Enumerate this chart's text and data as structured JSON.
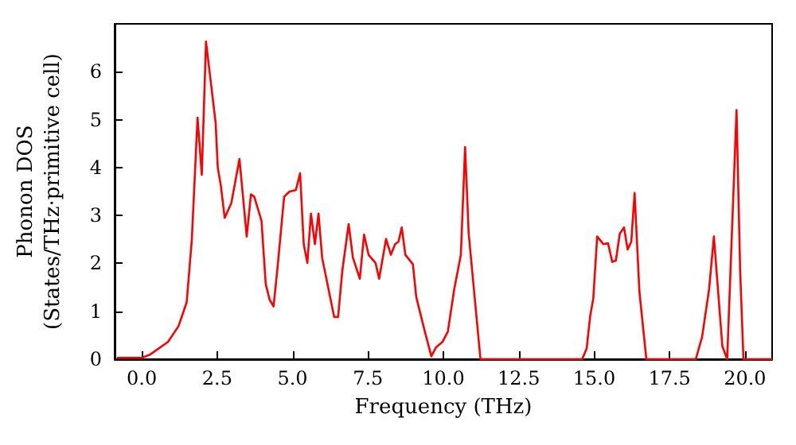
{
  "chart_data": {
    "type": "line",
    "xlabel": "Frequency (THz)",
    "ylabel": "Phonon DOS\n(States/THz·primitive cell)",
    "x": [
      -0.82,
      0,
      0.26,
      0.87,
      1.22,
      1.49,
      1.66,
      1.85,
      1.99,
      2.13,
      2.45,
      2.52,
      2.62,
      2.75,
      2.97,
      3.24,
      3.48,
      3.62,
      3.73,
      3.97,
      4.11,
      4.24,
      4.37,
      4.5,
      4.72,
      4.9,
      5.11,
      5.25,
      5.37,
      5.49,
      5.61,
      5.74,
      5.86,
      5.98,
      6.38,
      6.51,
      6.65,
      6.86,
      7.0,
      7.23,
      7.37,
      7.52,
      7.75,
      7.87,
      8.1,
      8.26,
      8.4,
      8.51,
      8.62,
      8.74,
      8.99,
      9.1,
      9.36,
      9.6,
      9.76,
      9.97,
      10.15,
      10.36,
      10.58,
      10.72,
      10.84,
      11.02,
      11.23,
      14.6,
      14.75,
      14.87,
      14.97,
      15.1,
      15.31,
      15.46,
      15.6,
      15.72,
      15.85,
      15.99,
      16.11,
      16.23,
      16.34,
      16.5,
      16.73,
      18.37,
      18.58,
      18.81,
      18.97,
      19.11,
      19.25,
      19.41,
      19.72,
      19.84,
      19.95,
      20.9
    ],
    "series": [
      {
        "color": "#ff0000",
        "values": [
          0.03,
          0.03,
          0.09,
          0.36,
          0.69,
          1.19,
          2.5,
          5.04,
          3.85,
          6.63,
          4.93,
          4.0,
          3.63,
          2.95,
          3.26,
          4.18,
          2.56,
          3.44,
          3.39,
          2.89,
          1.57,
          1.24,
          1.1,
          1.9,
          3.39,
          3.5,
          3.53,
          3.88,
          2.4,
          2.01,
          3.04,
          2.4,
          3.04,
          2.12,
          0.88,
          0.88,
          1.85,
          2.82,
          2.12,
          1.68,
          2.6,
          2.18,
          2.01,
          1.68,
          2.51,
          2.18,
          2.4,
          2.45,
          2.75,
          2.18,
          1.98,
          1.3,
          0.64,
          0.06,
          0.25,
          0.36,
          0.58,
          1.46,
          2.18,
          4.43,
          2.62,
          1.41,
          0,
          0,
          0.22,
          0.91,
          1.26,
          2.56,
          2.4,
          2.42,
          2.03,
          2.06,
          2.62,
          2.75,
          2.29,
          2.45,
          3.47,
          1.41,
          0,
          0,
          0.47,
          1.46,
          2.56,
          1.41,
          0.27,
          0,
          5.2,
          1.85,
          0,
          0
        ]
      }
    ],
    "xlim": [
      -0.9,
      20.9
    ],
    "xticks": [
      {
        "value": 0,
        "label": "0.0"
      },
      {
        "value": 2.5,
        "label": "2.5"
      },
      {
        "value": 5,
        "label": "5.0"
      },
      {
        "value": 7.5,
        "label": "7.5"
      },
      {
        "value": 10,
        "label": "10.0"
      },
      {
        "value": 12.5,
        "label": "12.5"
      },
      {
        "value": 15,
        "label": "15.0"
      },
      {
        "value": 17.5,
        "label": "17.5"
      },
      {
        "value": 20,
        "label": "20.0"
      }
    ],
    "ylim": [
      0,
      7
    ],
    "yticks": [
      0,
      1,
      2,
      3,
      4,
      5,
      6
    ],
    "grid": false,
    "marker": "none",
    "line_style": "solid"
  }
}
